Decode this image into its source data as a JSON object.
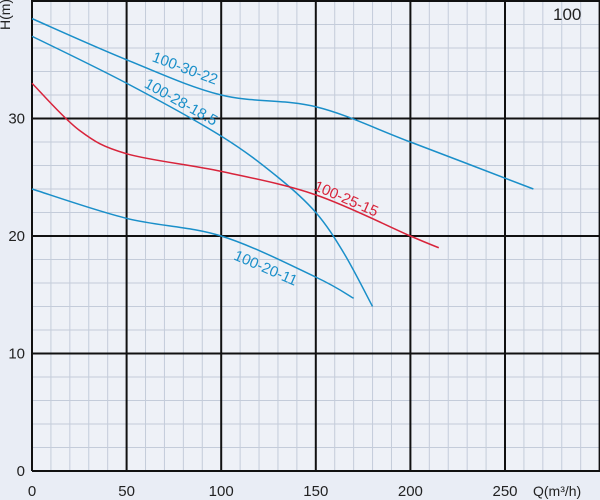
{
  "chart_data": {
    "type": "line",
    "title": "100",
    "xlabel": "Q(m³/h)",
    "ylabel": "H(m)",
    "xlim": [
      0,
      300
    ],
    "ylim": [
      0,
      40
    ],
    "x_ticks": [
      "0",
      "50",
      "100",
      "150",
      "200",
      "250"
    ],
    "y_ticks": [
      "0",
      "10",
      "20",
      "30"
    ],
    "grid": true,
    "series": [
      {
        "name": "100-30-22",
        "color": "#1a8fc9",
        "x": [
          0,
          50,
          100,
          150,
          200,
          265
        ],
        "y": [
          38.5,
          35,
          32,
          31,
          28,
          24
        ]
      },
      {
        "name": "100-28-18.5",
        "color": "#1a8fc9",
        "x": [
          0,
          50,
          100,
          130,
          150,
          165,
          180
        ],
        "y": [
          37,
          33,
          28.5,
          25,
          22,
          18.5,
          14
        ]
      },
      {
        "name": "100-25-15",
        "color": "#d8243b",
        "x": [
          0,
          25,
          50,
          100,
          150,
          200,
          215
        ],
        "y": [
          33,
          29,
          27,
          25.5,
          23.5,
          20,
          19
        ]
      },
      {
        "name": "100-20-11",
        "color": "#1a8fc9",
        "x": [
          0,
          50,
          100,
          150,
          170
        ],
        "y": [
          24,
          21.5,
          20,
          16.5,
          14.7
        ]
      }
    ]
  }
}
